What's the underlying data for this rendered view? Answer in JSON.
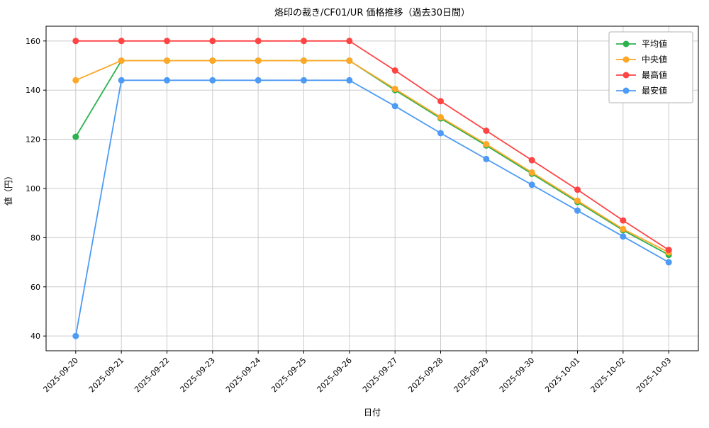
{
  "chart_data": {
    "type": "line",
    "title": "烙印の裁き/CF01/UR 価格推移（過去30日間）",
    "xlabel": "日付",
    "ylabel": "値（円）",
    "categories": [
      "2025-09-20",
      "2025-09-21",
      "2025-09-22",
      "2025-09-23",
      "2025-09-24",
      "2025-09-25",
      "2025-09-26",
      "2025-09-27",
      "2025-09-28",
      "2025-09-29",
      "2025-09-30",
      "2025-10-01",
      "2025-10-02",
      "2025-10-03"
    ],
    "series": [
      {
        "name": "平均値",
        "color": "#2bb24c",
        "values": [
          121,
          152,
          152,
          152,
          152,
          152,
          152,
          140,
          128.5,
          117.5,
          106,
          94.5,
          83,
          73
        ]
      },
      {
        "name": "中央値",
        "color": "#ffa726",
        "values": [
          144,
          152,
          152,
          152,
          152,
          152,
          152,
          140.5,
          129,
          118,
          106.5,
          95,
          83.5,
          74
        ]
      },
      {
        "name": "最高値",
        "color": "#ff4444",
        "values": [
          160,
          160,
          160,
          160,
          160,
          160,
          160,
          148,
          135.5,
          123.5,
          111.5,
          99.5,
          87,
          75
        ]
      },
      {
        "name": "最安値",
        "color": "#4d9bf5",
        "values": [
          40,
          144,
          144,
          144,
          144,
          144,
          144,
          133.5,
          122.5,
          112,
          101.5,
          91,
          80.5,
          70
        ]
      }
    ],
    "yticks": [
      40,
      60,
      80,
      100,
      120,
      140,
      160
    ],
    "ylim": [
      34,
      166
    ],
    "grid": true,
    "legend_position": "upper right",
    "grid_color": "#cccccc",
    "spine_color": "#000000",
    "legend_border_color": "#b3b3b3"
  }
}
